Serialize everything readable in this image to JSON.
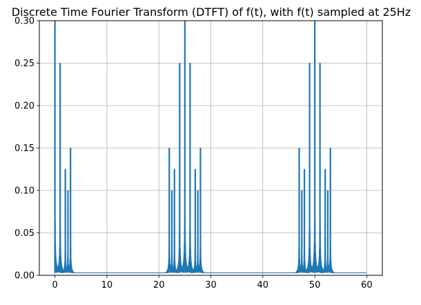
{
  "chart_data": {
    "type": "line",
    "title": "Discrete Time Fourier Transform (DTFT) of f(t), with f(t) sampled at 25Hz",
    "xlabel": "",
    "ylabel": "",
    "xlim": [
      -3,
      63
    ],
    "ylim": [
      0.0,
      0.3
    ],
    "x_ticks": [
      0,
      10,
      20,
      30,
      40,
      50,
      60
    ],
    "x_tick_labels": [
      "0",
      "10",
      "20",
      "30",
      "40",
      "50",
      "60"
    ],
    "y_ticks": [
      0.0,
      0.05,
      0.1,
      0.15,
      0.2,
      0.25,
      0.3
    ],
    "y_tick_labels": [
      "0.00",
      "0.05",
      "0.10",
      "0.15",
      "0.20",
      "0.25",
      "0.30"
    ],
    "grid": true,
    "series_color": "#1f77b4",
    "x_range": [
      0,
      60
    ],
    "baseline": 0.003,
    "peaks": [
      {
        "x": 0,
        "y": 0.3
      },
      {
        "x": 1,
        "y": 0.25
      },
      {
        "x": 2,
        "y": 0.125
      },
      {
        "x": 2.5,
        "y": 0.1
      },
      {
        "x": 3,
        "y": 0.15
      },
      {
        "x": 22,
        "y": 0.15
      },
      {
        "x": 22.5,
        "y": 0.1
      },
      {
        "x": 23,
        "y": 0.125
      },
      {
        "x": 24,
        "y": 0.25
      },
      {
        "x": 25,
        "y": 0.3
      },
      {
        "x": 26,
        "y": 0.25
      },
      {
        "x": 27,
        "y": 0.125
      },
      {
        "x": 27.5,
        "y": 0.1
      },
      {
        "x": 28,
        "y": 0.15
      },
      {
        "x": 47,
        "y": 0.15
      },
      {
        "x": 47.5,
        "y": 0.1
      },
      {
        "x": 48,
        "y": 0.125
      },
      {
        "x": 49,
        "y": 0.25
      },
      {
        "x": 50,
        "y": 0.3
      },
      {
        "x": 51,
        "y": 0.25
      },
      {
        "x": 52,
        "y": 0.125
      },
      {
        "x": 52.5,
        "y": 0.1
      },
      {
        "x": 53,
        "y": 0.15
      }
    ]
  }
}
